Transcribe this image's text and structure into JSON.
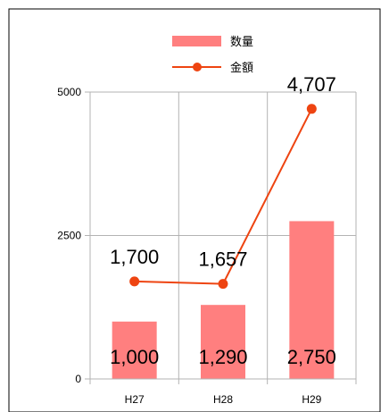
{
  "chart_data": {
    "type": "bar",
    "categories": [
      "H27",
      "H28",
      "H29"
    ],
    "series": [
      {
        "name": "数量",
        "kind": "bar",
        "values": [
          1000,
          1290,
          2750
        ],
        "labels": [
          "1,000",
          "1,290",
          "2,750"
        ],
        "color": "#ff7f7f"
      },
      {
        "name": "金額",
        "kind": "line",
        "values": [
          1700,
          1657,
          4707
        ],
        "labels": [
          "1,700",
          "1,657",
          "4,707"
        ],
        "color": "#ee4411"
      }
    ],
    "yticks": [
      {
        "value": 0,
        "label": "0"
      },
      {
        "value": 2500,
        "label": "2500"
      },
      {
        "value": 5000,
        "label": "5000"
      }
    ],
    "ylim": [
      0,
      5000
    ],
    "grid": true,
    "legend": "top-center"
  }
}
